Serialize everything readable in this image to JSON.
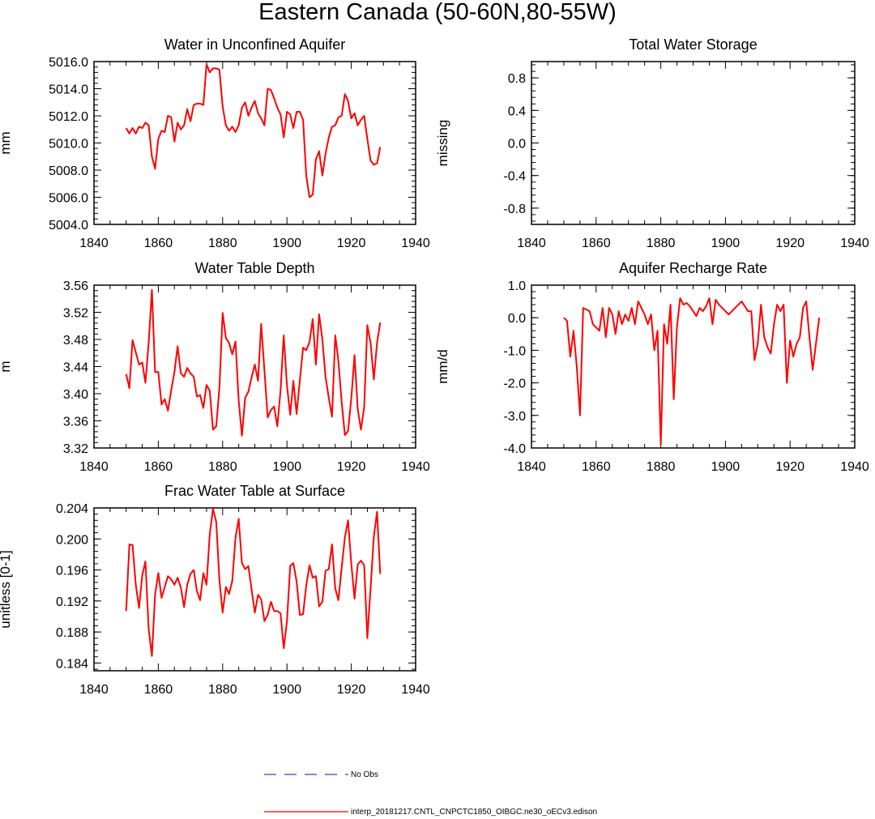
{
  "title": "Eastern Canada (50-60N,80-55W)",
  "legend": {
    "entries": [
      {
        "label": "No Obs",
        "color": "#3344cc",
        "dash": "dashed"
      },
      {
        "label": "interp_20181217.CNTL_CNPCTC1850_OIBGC.ne30_oECv3.edison",
        "color": "#ff0000",
        "dash": "solid"
      }
    ]
  },
  "chart_data": [
    {
      "type": "line",
      "title": "Water in Unconfined Aquifer",
      "ylabel": "mm",
      "xlim": [
        1840,
        1940
      ],
      "ylim": [
        5004,
        5016
      ],
      "xticks": [
        1840,
        1860,
        1880,
        1900,
        1920,
        1940
      ],
      "xtick_labels": [
        "1840",
        "1860",
        "1880",
        "1900",
        "1920",
        "1940"
      ],
      "yticks": [
        5004,
        5006,
        5008,
        5010,
        5012,
        5014,
        5016
      ],
      "ytick_labels": [
        "5004.0",
        "5006.0",
        "5008.0",
        "5010.0",
        "5012.0",
        "5014.0",
        "5016.0"
      ],
      "series": [
        {
          "color": "#ff0000",
          "x": [
            1850,
            1851,
            1852,
            1853,
            1854,
            1855,
            1856,
            1857,
            1858,
            1859,
            1860,
            1861,
            1862,
            1863,
            1864,
            1865,
            1866,
            1867,
            1868,
            1869,
            1870,
            1871,
            1872,
            1873,
            1874,
            1875,
            1876,
            1877,
            1878,
            1879,
            1880,
            1881,
            1882,
            1883,
            1884,
            1885,
            1886,
            1887,
            1888,
            1889,
            1890,
            1891,
            1892,
            1893,
            1894,
            1895,
            1896,
            1897,
            1898,
            1899,
            1900,
            1901,
            1902,
            1903,
            1904,
            1905,
            1906,
            1907,
            1908,
            1909,
            1910,
            1911,
            1912,
            1913,
            1914,
            1915,
            1916,
            1917,
            1918,
            1919,
            1920,
            1921,
            1922,
            1923,
            1924,
            1925,
            1926,
            1927,
            1928,
            1929
          ],
          "y": [
            5011.1,
            5010.7,
            5011.1,
            5010.7,
            5011.2,
            5011.1,
            5011.5,
            5011.3,
            5009.0,
            5008.1,
            5010.3,
            5010.9,
            5010.8,
            5012.0,
            5011.9,
            5010.1,
            5011.5,
            5011.0,
            5011.3,
            5012.5,
            5011.6,
            5012.8,
            5012.9,
            5012.9,
            5012.8,
            5015.8,
            5015.2,
            5015.5,
            5015.5,
            5015.4,
            5012.7,
            5011.3,
            5010.9,
            5011.2,
            5010.8,
            5011.3,
            5012.6,
            5013.0,
            5012.0,
            5012.6,
            5013.1,
            5012.2,
            5011.8,
            5011.3,
            5014.0,
            5013.9,
            5013.3,
            5012.6,
            5012.1,
            5010.4,
            5012.3,
            5012.1,
            5011.1,
            5012.3,
            5012.3,
            5011.7,
            5007.6,
            5006.0,
            5006.2,
            5008.8,
            5009.4,
            5007.6,
            5009.2,
            5010.4,
            5011.2,
            5011.3,
            5011.9,
            5012.0,
            5013.6,
            5013.1,
            5011.8,
            5012.2,
            5011.3,
            5011.7,
            5012.0,
            5010.3,
            5008.7,
            5008.4,
            5008.5,
            5009.7
          ]
        }
      ]
    },
    {
      "type": "line",
      "title": "Total Water Storage",
      "ylabel": "missing",
      "xlim": [
        1840,
        1940
      ],
      "ylim": [
        -1.0,
        1.0
      ],
      "xticks": [
        1840,
        1860,
        1880,
        1900,
        1920,
        1940
      ],
      "xtick_labels": [
        "1840",
        "1860",
        "1880",
        "1900",
        "1920",
        "1940"
      ],
      "yticks": [
        -0.8,
        -0.4,
        0.0,
        0.4,
        0.8
      ],
      "ytick_labels": [
        "-0.8",
        "-0.4",
        "0.0",
        "0.4",
        "0.8"
      ],
      "series": []
    },
    {
      "type": "line",
      "title": "Water Table Depth",
      "ylabel": "m",
      "xlim": [
        1840,
        1940
      ],
      "ylim": [
        3.32,
        3.56
      ],
      "xticks": [
        1840,
        1860,
        1880,
        1900,
        1920,
        1940
      ],
      "xtick_labels": [
        "1840",
        "1860",
        "1880",
        "1900",
        "1920",
        "1940"
      ],
      "yticks": [
        3.32,
        3.36,
        3.4,
        3.44,
        3.48,
        3.52,
        3.56
      ],
      "ytick_labels": [
        "3.32",
        "3.36",
        "3.40",
        "3.44",
        "3.48",
        "3.52",
        "3.56"
      ],
      "series": [
        {
          "color": "#ff0000",
          "x": [
            1850,
            1851,
            1852,
            1853,
            1854,
            1855,
            1856,
            1857,
            1858,
            1859,
            1860,
            1861,
            1862,
            1863,
            1864,
            1865,
            1866,
            1867,
            1868,
            1869,
            1870,
            1871,
            1872,
            1873,
            1874,
            1875,
            1876,
            1877,
            1878,
            1879,
            1880,
            1881,
            1882,
            1883,
            1884,
            1885,
            1886,
            1887,
            1888,
            1889,
            1890,
            1891,
            1892,
            1893,
            1894,
            1895,
            1896,
            1897,
            1898,
            1899,
            1900,
            1901,
            1902,
            1903,
            1904,
            1905,
            1906,
            1907,
            1908,
            1909,
            1910,
            1911,
            1912,
            1913,
            1914,
            1915,
            1916,
            1917,
            1918,
            1919,
            1920,
            1921,
            1922,
            1923,
            1924,
            1925,
            1926,
            1927,
            1928,
            1929
          ],
          "y": [
            3.429,
            3.408,
            3.479,
            3.461,
            3.443,
            3.446,
            3.416,
            3.475,
            3.553,
            3.432,
            3.432,
            3.384,
            3.392,
            3.375,
            3.405,
            3.432,
            3.47,
            3.43,
            3.425,
            3.438,
            3.43,
            3.425,
            3.396,
            3.398,
            3.379,
            3.413,
            3.404,
            3.347,
            3.352,
            3.408,
            3.519,
            3.482,
            3.475,
            3.458,
            3.477,
            3.39,
            3.338,
            3.394,
            3.403,
            3.424,
            3.443,
            3.419,
            3.503,
            3.434,
            3.365,
            3.376,
            3.381,
            3.352,
            3.405,
            3.486,
            3.412,
            3.369,
            3.419,
            3.37,
            3.42,
            3.468,
            3.464,
            3.476,
            3.51,
            3.443,
            3.517,
            3.48,
            3.425,
            3.394,
            3.366,
            3.486,
            3.448,
            3.388,
            3.339,
            3.345,
            3.393,
            3.457,
            3.378,
            3.347,
            3.38,
            3.501,
            3.475,
            3.421,
            3.475,
            3.505
          ]
        }
      ]
    },
    {
      "type": "line",
      "title": "Aquifer Recharge Rate",
      "ylabel": "mm/d",
      "xlim": [
        1840,
        1940
      ],
      "ylim": [
        -4.0,
        1.0
      ],
      "xticks": [
        1840,
        1860,
        1880,
        1900,
        1920,
        1940
      ],
      "xtick_labels": [
        "1840",
        "1860",
        "1880",
        "1900",
        "1920",
        "1940"
      ],
      "yticks": [
        -4.0,
        -3.0,
        -2.0,
        -1.0,
        0.0,
        1.0
      ],
      "ytick_labels": [
        "-4.0",
        "-3.0",
        "-2.0",
        "-1.0",
        "0.0",
        "1.0"
      ],
      "series": [
        {
          "color": "#ff0000",
          "x": [
            1850,
            1851,
            1852,
            1853,
            1854,
            1855,
            1856,
            1857,
            1858,
            1859,
            1860,
            1861,
            1862,
            1863,
            1864,
            1865,
            1866,
            1867,
            1868,
            1869,
            1870,
            1871,
            1872,
            1873,
            1874,
            1875,
            1876,
            1877,
            1878,
            1879,
            1880,
            1881,
            1882,
            1883,
            1884,
            1885,
            1886,
            1887,
            1888,
            1889,
            1890,
            1891,
            1892,
            1893,
            1894,
            1895,
            1896,
            1897,
            1898,
            1899,
            1900,
            1901,
            1902,
            1903,
            1904,
            1905,
            1906,
            1907,
            1908,
            1909,
            1910,
            1911,
            1912,
            1913,
            1914,
            1915,
            1916,
            1917,
            1918,
            1919,
            1920,
            1921,
            1922,
            1923,
            1924,
            1925,
            1926,
            1927,
            1928,
            1929
          ],
          "y": [
            0.0,
            -0.1,
            -1.2,
            -0.4,
            -1.5,
            -3.0,
            0.3,
            0.25,
            0.2,
            -0.2,
            -0.3,
            -0.4,
            0.3,
            -0.6,
            0.3,
            0.1,
            -0.5,
            0.2,
            -0.2,
            0.1,
            -0.1,
            0.3,
            -0.2,
            0.5,
            0.3,
            0.1,
            -0.2,
            0.1,
            -1.0,
            -0.4,
            -3.9,
            -0.2,
            -0.8,
            0.4,
            -2.5,
            -0.3,
            0.6,
            0.4,
            0.45,
            0.35,
            0.2,
            0.05,
            0.3,
            0.2,
            0.35,
            0.6,
            -0.2,
            0.55,
            0.4,
            0.3,
            0.2,
            0.1,
            0.2,
            0.3,
            0.4,
            0.5,
            0.35,
            0.2,
            0.2,
            -1.3,
            -0.8,
            0.4,
            -0.6,
            -0.9,
            -1.1,
            -0.2,
            0.4,
            0.2,
            0.4,
            -2.0,
            -0.7,
            -1.2,
            -0.8,
            -0.6,
            0.3,
            0.5,
            -0.6,
            -1.6,
            -0.8,
            0.0
          ]
        }
      ]
    },
    {
      "type": "line",
      "title": "Frac Water Table at Surface",
      "ylabel": "unitless [0-1]",
      "xlim": [
        1840,
        1940
      ],
      "ylim": [
        0.183,
        0.204
      ],
      "xticks": [
        1840,
        1860,
        1880,
        1900,
        1920,
        1940
      ],
      "xtick_labels": [
        "1840",
        "1860",
        "1880",
        "1900",
        "1920",
        "1940"
      ],
      "yticks": [
        0.184,
        0.188,
        0.192,
        0.196,
        0.2,
        0.204
      ],
      "ytick_labels": [
        "0.184",
        "0.188",
        "0.192",
        "0.196",
        "0.200",
        "0.204"
      ],
      "series": [
        {
          "color": "#ff0000",
          "x": [
            1850,
            1851,
            1852,
            1853,
            1854,
            1855,
            1856,
            1857,
            1858,
            1859,
            1860,
            1861,
            1862,
            1863,
            1864,
            1865,
            1866,
            1867,
            1868,
            1869,
            1870,
            1871,
            1872,
            1873,
            1874,
            1875,
            1876,
            1877,
            1878,
            1879,
            1880,
            1881,
            1882,
            1883,
            1884,
            1885,
            1886,
            1887,
            1888,
            1889,
            1890,
            1891,
            1892,
            1893,
            1894,
            1895,
            1896,
            1897,
            1898,
            1899,
            1900,
            1901,
            1902,
            1903,
            1904,
            1905,
            1906,
            1907,
            1908,
            1909,
            1910,
            1911,
            1912,
            1913,
            1914,
            1915,
            1916,
            1917,
            1918,
            1919,
            1920,
            1921,
            1922,
            1923,
            1924,
            1925,
            1926,
            1927,
            1928,
            1929
          ],
          "y": [
            0.1907,
            0.1993,
            0.1992,
            0.1941,
            0.1911,
            0.1953,
            0.1971,
            0.1884,
            0.1849,
            0.1928,
            0.1956,
            0.1924,
            0.1938,
            0.1952,
            0.1948,
            0.1941,
            0.195,
            0.1937,
            0.1912,
            0.1941,
            0.1955,
            0.196,
            0.1933,
            0.1921,
            0.1956,
            0.1941,
            0.2006,
            0.2039,
            0.2022,
            0.1947,
            0.1905,
            0.1938,
            0.1929,
            0.1946,
            0.2002,
            0.2026,
            0.1969,
            0.1961,
            0.1965,
            0.1935,
            0.1905,
            0.1928,
            0.1922,
            0.1894,
            0.1902,
            0.1919,
            0.1907,
            0.1907,
            0.1904,
            0.1859,
            0.1894,
            0.1965,
            0.1969,
            0.1945,
            0.1902,
            0.1903,
            0.194,
            0.1966,
            0.195,
            0.1952,
            0.1913,
            0.1919,
            0.1959,
            0.1961,
            0.1993,
            0.1936,
            0.1921,
            0.1963,
            0.2002,
            0.2024,
            0.1968,
            0.1923,
            0.1967,
            0.1972,
            0.1966,
            0.1872,
            0.1936,
            0.2003,
            0.2035,
            0.1955
          ]
        }
      ]
    }
  ]
}
